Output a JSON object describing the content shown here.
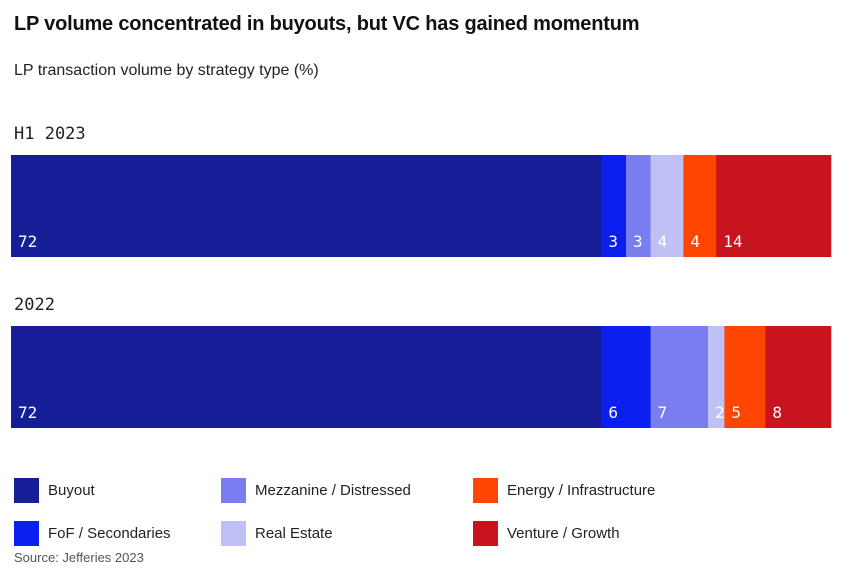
{
  "title": "LP volume concentrated in buyouts, but VC has gained momentum",
  "subtitle": "LP transaction volume by strategy type (%)",
  "source": "Source: Jefferies 2023",
  "chart_data": {
    "type": "bar",
    "orientation": "horizontal-stacked-100",
    "title": "LP volume concentrated in buyouts, but VC has gained momentum",
    "subtitle": "LP transaction volume by strategy type (%)",
    "categories": [
      "H1 2023",
      "2022"
    ],
    "unit": "%",
    "series": [
      {
        "name": "Buyout",
        "color": "#151e96",
        "values": [
          72,
          72
        ]
      },
      {
        "name": "FoF / Secondaries",
        "color": "#0a1ff0",
        "values": [
          3,
          6
        ]
      },
      {
        "name": "Mezzanine / Distressed",
        "color": "#7a7df0",
        "values": [
          3,
          7
        ]
      },
      {
        "name": "Real Estate",
        "color": "#bfc0f5",
        "values": [
          4,
          2
        ]
      },
      {
        "name": "Energy / Infrastructure",
        "color": "#ff4500",
        "values": [
          4,
          5
        ]
      },
      {
        "name": "Venture / Growth",
        "color": "#c8141e",
        "values": [
          14,
          8
        ]
      }
    ],
    "legend_placement": "bottom",
    "grid": false
  },
  "legend": [
    {
      "label": "Buyout",
      "color": "#151e96"
    },
    {
      "label": "Mezzanine / Distressed",
      "color": "#7a7df0"
    },
    {
      "label": "Energy / Infrastructure",
      "color": "#ff4500"
    },
    {
      "label": "FoF / Secondaries",
      "color": "#0a1ff0"
    },
    {
      "label": "Real Estate",
      "color": "#bfc0f5"
    },
    {
      "label": "Venture / Growth",
      "color": "#c8141e"
    }
  ]
}
